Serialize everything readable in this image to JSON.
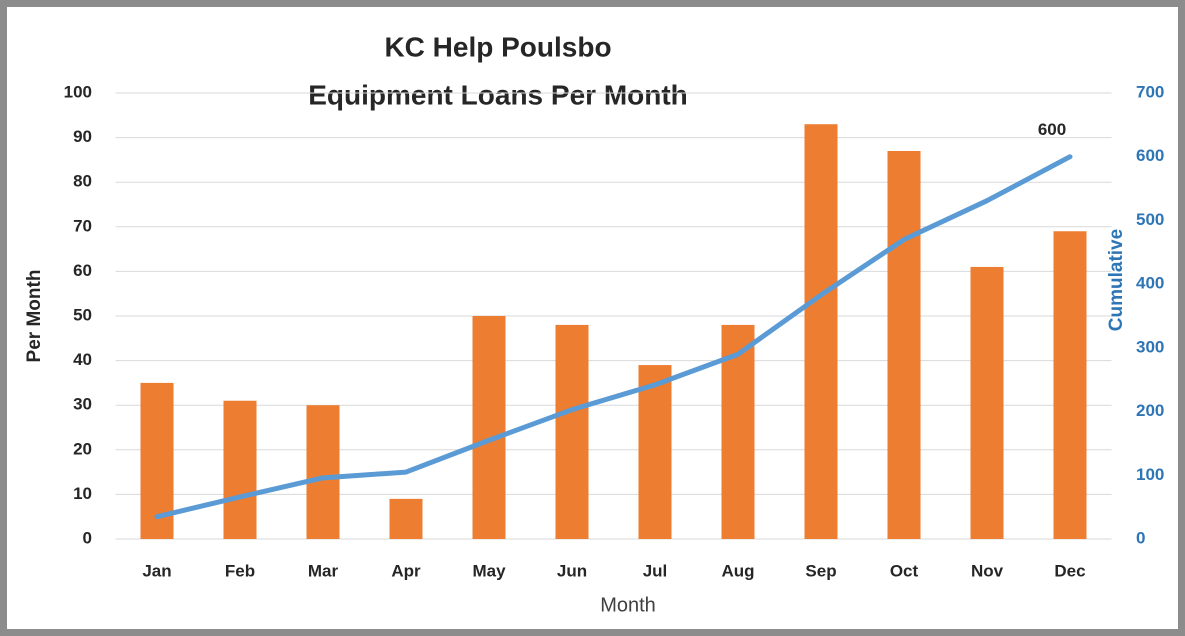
{
  "chart_data": {
    "type": "bar-line",
    "title": "KC Help Poulsbo",
    "subtitle": "Equipment Loans Per Month",
    "x_label": "Month",
    "y_label": "Per Month",
    "y2_label": "Cumulative",
    "categories": [
      "Jan",
      "Feb",
      "Mar",
      "Apr",
      "May",
      "Jun",
      "Jul",
      "Aug",
      "Sep",
      "Oct",
      "Nov",
      "Dec"
    ],
    "series": [
      {
        "name": "Per Month",
        "type": "bar",
        "color": "#ed7d31",
        "values": [
          35,
          31,
          30,
          9,
          50,
          48,
          39,
          48,
          93,
          87,
          61,
          69
        ]
      },
      {
        "name": "Cumulative",
        "type": "line",
        "axis": "y2",
        "color": "#5b9bd5",
        "values": [
          35,
          66,
          96,
          105,
          155,
          203,
          242,
          290,
          383,
          470,
          531,
          600
        ]
      }
    ],
    "ylim": [
      0,
      100
    ],
    "yticks": [
      0,
      10,
      20,
      30,
      40,
      50,
      60,
      70,
      80,
      90,
      100
    ],
    "y2lim": [
      0,
      700
    ],
    "y2ticks": [
      0,
      100,
      200,
      300,
      400,
      500,
      600,
      700
    ],
    "grid": true
  }
}
